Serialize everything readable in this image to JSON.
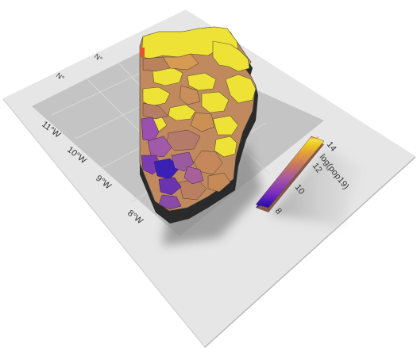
{
  "figure": {
    "kind": "3d-extruded-choropleth",
    "lon_axis_labels": [
      "11°W",
      "10°W",
      "9°W",
      "8°W"
    ],
    "lat_axis_labels": [
      "N°",
      "N°"
    ],
    "legend": {
      "title": "log(pop19)",
      "tick_labels": [
        "8",
        "10",
        "12",
        "14"
      ],
      "color_stops": [
        "#1a0aa8",
        "#7a2cc0",
        "#a85aa0",
        "#c8785f",
        "#e09a40",
        "#eec820",
        "#f3e24a",
        "#f06a20"
      ]
    },
    "palette": {
      "high_yellow": "#eee237",
      "mid_tan": "#c08a5e",
      "low_purple": "#8a4bb0",
      "lowest_blue": "#3a20b4",
      "plane_light": "#e6e6e6",
      "plane_gray": "#c4c4c4",
      "plane_shadow": "#8a8a8a"
    }
  }
}
